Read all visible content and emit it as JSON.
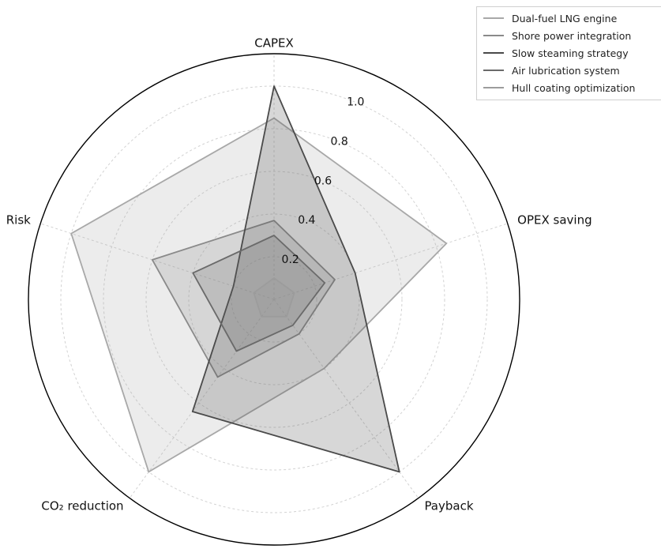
{
  "chart_data": {
    "type": "radar",
    "axes": [
      "CAPEX",
      "OPEX saving",
      "Payback",
      "CO₂ reduction",
      "Risk"
    ],
    "rticks": [
      "0.2",
      "0.4",
      "0.6",
      "0.8",
      "1.0"
    ],
    "rlim": [
      0,
      1
    ],
    "grid": true,
    "legend_position": "top-right",
    "series": [
      {
        "name": "Dual-fuel LNG engine",
        "values": [
          0.85,
          0.85,
          0.4,
          1.0,
          1.0
        ],
        "color": "#a8a8a8"
      },
      {
        "name": "Shore power integration",
        "values": [
          0.37,
          0.3,
          0.2,
          0.45,
          0.6
        ],
        "color": "#8a8a8a"
      },
      {
        "name": "Slow steaming strategy",
        "values": [
          1.0,
          0.4,
          1.0,
          0.65,
          0.2
        ],
        "color": "#4a4a4a"
      },
      {
        "name": "Air lubrication system",
        "values": [
          0.3,
          0.25,
          0.15,
          0.3,
          0.4
        ],
        "color": "#6a6a6a"
      },
      {
        "name": "Hull coating optimization",
        "values": [
          0.1,
          0.1,
          0.1,
          0.1,
          0.1
        ],
        "color": "#9c9c9c"
      }
    ]
  }
}
